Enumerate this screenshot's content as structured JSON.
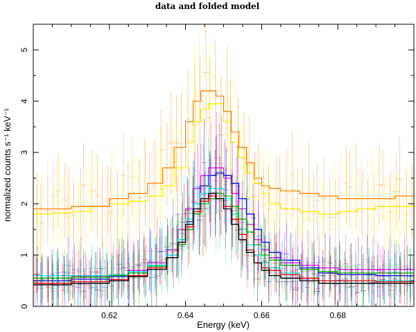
{
  "chart_data": {
    "type": "line",
    "title": "data and folded model",
    "xlabel": "Energy (keV)",
    "ylabel": "normalized counts s⁻¹ keV⁻¹",
    "xlim": [
      0.6,
      0.7
    ],
    "ylim": [
      0,
      5.5
    ],
    "xticks": [
      0.62,
      0.64,
      0.66,
      0.68
    ],
    "xtick_labels": [
      "0.62",
      "0.64",
      "0.66",
      "0.68"
    ],
    "yticks": [
      0,
      1,
      2,
      3,
      4,
      5
    ],
    "ytick_labels": [
      "0",
      "1",
      "2",
      "3",
      "4",
      "5"
    ],
    "grid": false,
    "legend": false,
    "series": [
      {
        "color": "#ffee00",
        "x": [
          0.6,
          0.605,
          0.61,
          0.615,
          0.62,
          0.625,
          0.63,
          0.634,
          0.637,
          0.64,
          0.642,
          0.644,
          0.646,
          0.648,
          0.65,
          0.652,
          0.654,
          0.656,
          0.658,
          0.66,
          0.662,
          0.665,
          0.67,
          0.675,
          0.68,
          0.685,
          0.69,
          0.695,
          0.7
        ],
        "y": [
          1.8,
          1.82,
          1.85,
          1.95,
          2.0,
          2.05,
          2.15,
          2.35,
          2.7,
          3.2,
          3.6,
          3.85,
          3.95,
          3.95,
          3.6,
          3.2,
          2.9,
          2.6,
          2.4,
          2.2,
          2.0,
          1.9,
          1.85,
          1.8,
          1.85,
          1.9,
          1.95,
          1.95,
          2.0
        ]
      },
      {
        "color": "#ff8000",
        "x": [
          0.6,
          0.61,
          0.62,
          0.625,
          0.63,
          0.634,
          0.637,
          0.64,
          0.642,
          0.644,
          0.646,
          0.648,
          0.65,
          0.652,
          0.654,
          0.656,
          0.658,
          0.66,
          0.662,
          0.665,
          0.67,
          0.675,
          0.68,
          0.685,
          0.69,
          0.695,
          0.7
        ],
        "y": [
          1.9,
          1.95,
          2.1,
          2.2,
          2.4,
          2.7,
          3.1,
          3.6,
          4.0,
          4.2,
          4.2,
          4.1,
          3.8,
          3.4,
          3.1,
          2.8,
          2.5,
          2.35,
          2.3,
          2.25,
          2.2,
          2.15,
          2.1,
          2.1,
          2.1,
          2.15,
          2.2
        ]
      },
      {
        "color": "#ff00ff",
        "x": [
          0.6,
          0.61,
          0.62,
          0.625,
          0.63,
          0.635,
          0.638,
          0.64,
          0.642,
          0.644,
          0.646,
          0.648,
          0.65,
          0.652,
          0.654,
          0.656,
          0.658,
          0.66,
          0.662,
          0.665,
          0.67,
          0.675,
          0.68,
          0.69,
          0.7
        ],
        "y": [
          0.55,
          0.58,
          0.62,
          0.7,
          0.85,
          1.1,
          1.5,
          1.9,
          2.3,
          2.55,
          2.7,
          2.7,
          2.5,
          2.2,
          1.9,
          1.6,
          1.3,
          1.1,
          0.95,
          0.85,
          0.8,
          0.75,
          0.72,
          0.72,
          0.7
        ]
      },
      {
        "color": "#0000ff",
        "x": [
          0.6,
          0.61,
          0.62,
          0.625,
          0.63,
          0.635,
          0.638,
          0.64,
          0.642,
          0.644,
          0.646,
          0.648,
          0.65,
          0.652,
          0.654,
          0.656,
          0.658,
          0.66,
          0.662,
          0.665,
          0.67,
          0.675,
          0.68,
          0.69,
          0.7
        ],
        "y": [
          0.5,
          0.53,
          0.58,
          0.65,
          0.8,
          1.0,
          1.3,
          1.65,
          2.0,
          2.35,
          2.55,
          2.6,
          2.55,
          2.4,
          2.1,
          1.8,
          1.5,
          1.25,
          1.05,
          0.9,
          0.75,
          0.65,
          0.62,
          0.6,
          0.6
        ]
      },
      {
        "color": "#00ffff",
        "x": [
          0.6,
          0.61,
          0.62,
          0.625,
          0.63,
          0.635,
          0.638,
          0.64,
          0.642,
          0.644,
          0.646,
          0.648,
          0.65,
          0.652,
          0.654,
          0.656,
          0.658,
          0.66,
          0.662,
          0.665,
          0.67,
          0.675,
          0.68,
          0.69,
          0.7
        ],
        "y": [
          0.6,
          0.6,
          0.62,
          0.68,
          0.8,
          1.0,
          1.3,
          1.7,
          2.0,
          2.2,
          2.3,
          2.3,
          2.1,
          1.8,
          1.5,
          1.2,
          1.0,
          0.85,
          0.75,
          0.65,
          0.55,
          0.5,
          0.5,
          0.5,
          0.5
        ]
      },
      {
        "color": "#00c000",
        "x": [
          0.6,
          0.61,
          0.62,
          0.625,
          0.63,
          0.635,
          0.638,
          0.64,
          0.642,
          0.644,
          0.646,
          0.648,
          0.65,
          0.652,
          0.654,
          0.656,
          0.658,
          0.66,
          0.662,
          0.665,
          0.67,
          0.675,
          0.68,
          0.69,
          0.7
        ],
        "y": [
          0.55,
          0.57,
          0.6,
          0.65,
          0.78,
          0.95,
          1.2,
          1.5,
          1.8,
          2.0,
          2.1,
          2.2,
          2.15,
          1.95,
          1.7,
          1.45,
          1.2,
          1.0,
          0.9,
          0.8,
          0.72,
          0.68,
          0.65,
          0.65,
          0.65
        ]
      },
      {
        "color": "#ff0000",
        "x": [
          0.6,
          0.61,
          0.62,
          0.625,
          0.63,
          0.635,
          0.638,
          0.64,
          0.642,
          0.644,
          0.646,
          0.648,
          0.65,
          0.652,
          0.654,
          0.656,
          0.658,
          0.66,
          0.662,
          0.665,
          0.67,
          0.675,
          0.68,
          0.69,
          0.7
        ],
        "y": [
          0.45,
          0.48,
          0.52,
          0.6,
          0.75,
          0.95,
          1.25,
          1.55,
          1.85,
          2.05,
          2.15,
          2.1,
          1.95,
          1.7,
          1.4,
          1.1,
          0.85,
          0.75,
          0.7,
          0.62,
          0.55,
          0.5,
          0.5,
          0.48,
          0.5
        ]
      },
      {
        "color": "#000000",
        "x": [
          0.6,
          0.61,
          0.62,
          0.625,
          0.63,
          0.635,
          0.638,
          0.64,
          0.642,
          0.644,
          0.646,
          0.648,
          0.65,
          0.652,
          0.654,
          0.656,
          0.658,
          0.66,
          0.662,
          0.665,
          0.67,
          0.675,
          0.68,
          0.69,
          0.7
        ],
        "y": [
          0.42,
          0.45,
          0.5,
          0.58,
          0.72,
          0.95,
          1.25,
          1.6,
          1.9,
          2.1,
          2.2,
          2.1,
          1.9,
          1.6,
          1.3,
          1.05,
          0.85,
          0.7,
          0.6,
          0.55,
          0.5,
          0.45,
          0.45,
          0.45,
          0.5
        ]
      }
    ]
  }
}
